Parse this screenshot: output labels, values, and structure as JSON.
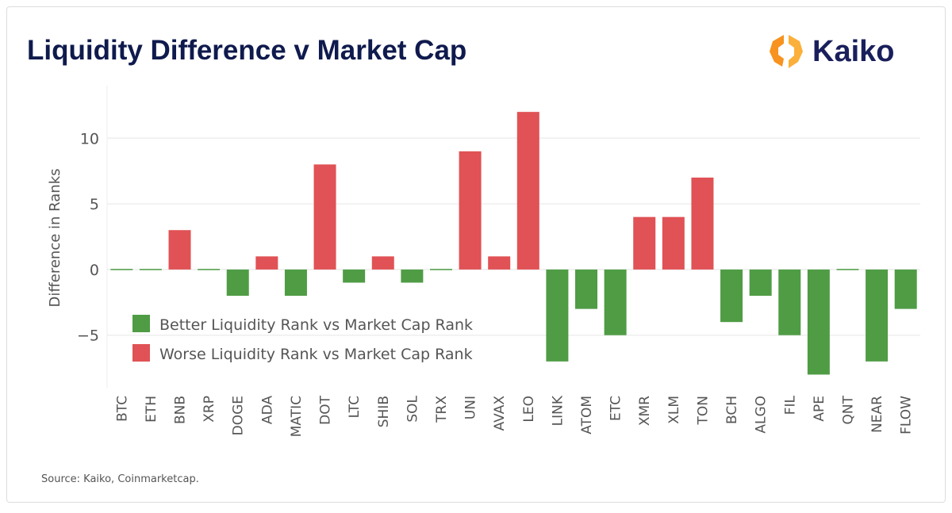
{
  "title": "Liquidity Difference v Market Cap",
  "logo": {
    "text": "Kaiko",
    "colors": [
      "#f7931e",
      "#1a1f5c"
    ]
  },
  "source": "Source: Kaiko, Coinmarketcap.",
  "chart_data": {
    "type": "bar",
    "title": "Liquidity Difference v Market Cap",
    "xlabel": "",
    "ylabel": "Difference in Ranks",
    "ylim": [
      -9,
      14
    ],
    "yticks": [
      -5,
      0,
      5,
      10
    ],
    "grid": true,
    "legend_placement": "bottom-left",
    "categories": [
      "BTC",
      "ETH",
      "BNB",
      "XRP",
      "DOGE",
      "ADA",
      "MATIC",
      "DOT",
      "LTC",
      "SHIB",
      "SOL",
      "TRX",
      "UNI",
      "AVAX",
      "LEO",
      "LINK",
      "ATOM",
      "ETC",
      "XMR",
      "XLM",
      "TON",
      "BCH",
      "ALGO",
      "FIL",
      "APE",
      "QNT",
      "NEAR",
      "FLOW"
    ],
    "values": [
      0,
      0,
      3,
      0,
      -2,
      1,
      -2,
      8,
      -1,
      1,
      -1,
      0,
      9,
      1,
      12,
      -7,
      -3,
      -5,
      4,
      4,
      7,
      -4,
      -2,
      -5,
      -8,
      0,
      -7,
      -3
    ],
    "series": [
      {
        "name": "Better Liquidity Rank vs Market Cap Rank",
        "color": "#4f9c45"
      },
      {
        "name": "Worse Liquidity Rank vs Market Cap Rank",
        "color": "#e05255"
      }
    ]
  }
}
